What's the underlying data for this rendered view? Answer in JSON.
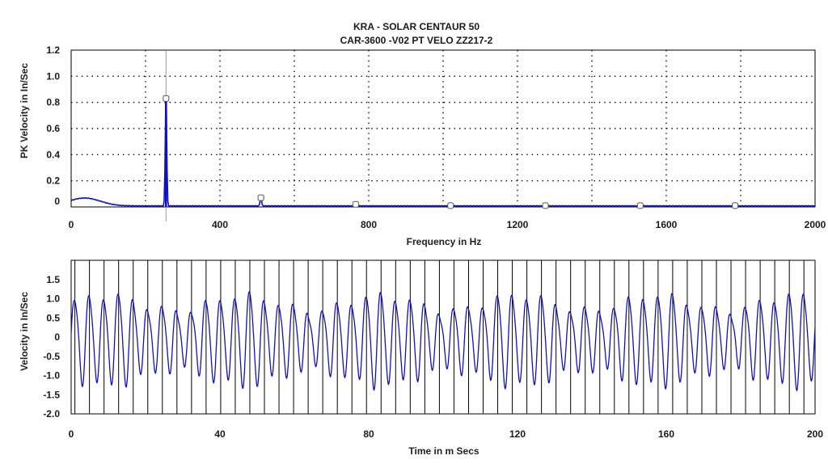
{
  "chart_data": [
    {
      "type": "line",
      "title": "KRA  - SOLAR CENTAUR 50",
      "subtitle": "CAR-3600  -V02   PT VELO ZZ217-2",
      "xlabel": "Frequency in Hz",
      "ylabel": "PK Velocity in In/Sec",
      "xlim": [
        0,
        2000
      ],
      "ylim": [
        0,
        1.2
      ],
      "x_ticks": [
        "0",
        "400",
        "800",
        "1200",
        "1600",
        "2000"
      ],
      "y_ticks": [
        "0",
        "0.2",
        "0.4",
        "0.6",
        "0.8",
        "1.0",
        "1.2"
      ],
      "grid": "dotted",
      "cursor_frequency": 255,
      "series": [
        {
          "color": "#1010c0",
          "peaks": [
            {
              "x": 255,
              "y": 0.82
            },
            {
              "x": 510,
              "y": 0.06
            },
            {
              "x": 765,
              "y": 0.02
            },
            {
              "x": 20,
              "y": 0.04
            },
            {
              "x": 60,
              "y": 0.03
            }
          ],
          "baseline": 0.01
        }
      ],
      "harmonic_markers": [
        {
          "x": 255,
          "y": 0.83
        },
        {
          "x": 510,
          "y": 0.07
        },
        {
          "x": 765,
          "y": 0.02
        },
        {
          "x": 1020,
          "y": 0.01
        },
        {
          "x": 1275,
          "y": 0.01
        },
        {
          "x": 1530,
          "y": 0.01
        },
        {
          "x": 1785,
          "y": 0.01
        }
      ]
    },
    {
      "type": "line",
      "xlabel": "Time in m Secs",
      "ylabel": "Velocity in In/Sec",
      "xlim": [
        0,
        200
      ],
      "ylim": [
        -2.0,
        2.0
      ],
      "x_ticks": [
        "0",
        "40",
        "80",
        "120",
        "160",
        "200"
      ],
      "y_ticks": [
        "-2.0",
        "-1.5",
        "-1.0",
        "-0.5",
        "0",
        "0.5",
        "1.0",
        "1.5"
      ],
      "period_ms": 3.92,
      "series": [
        {
          "color": "#1010c0",
          "amplitude_main": 0.95,
          "amplitude_second_harmonic": 0.15,
          "amplitude_modulation": 0.22
        }
      ]
    }
  ]
}
